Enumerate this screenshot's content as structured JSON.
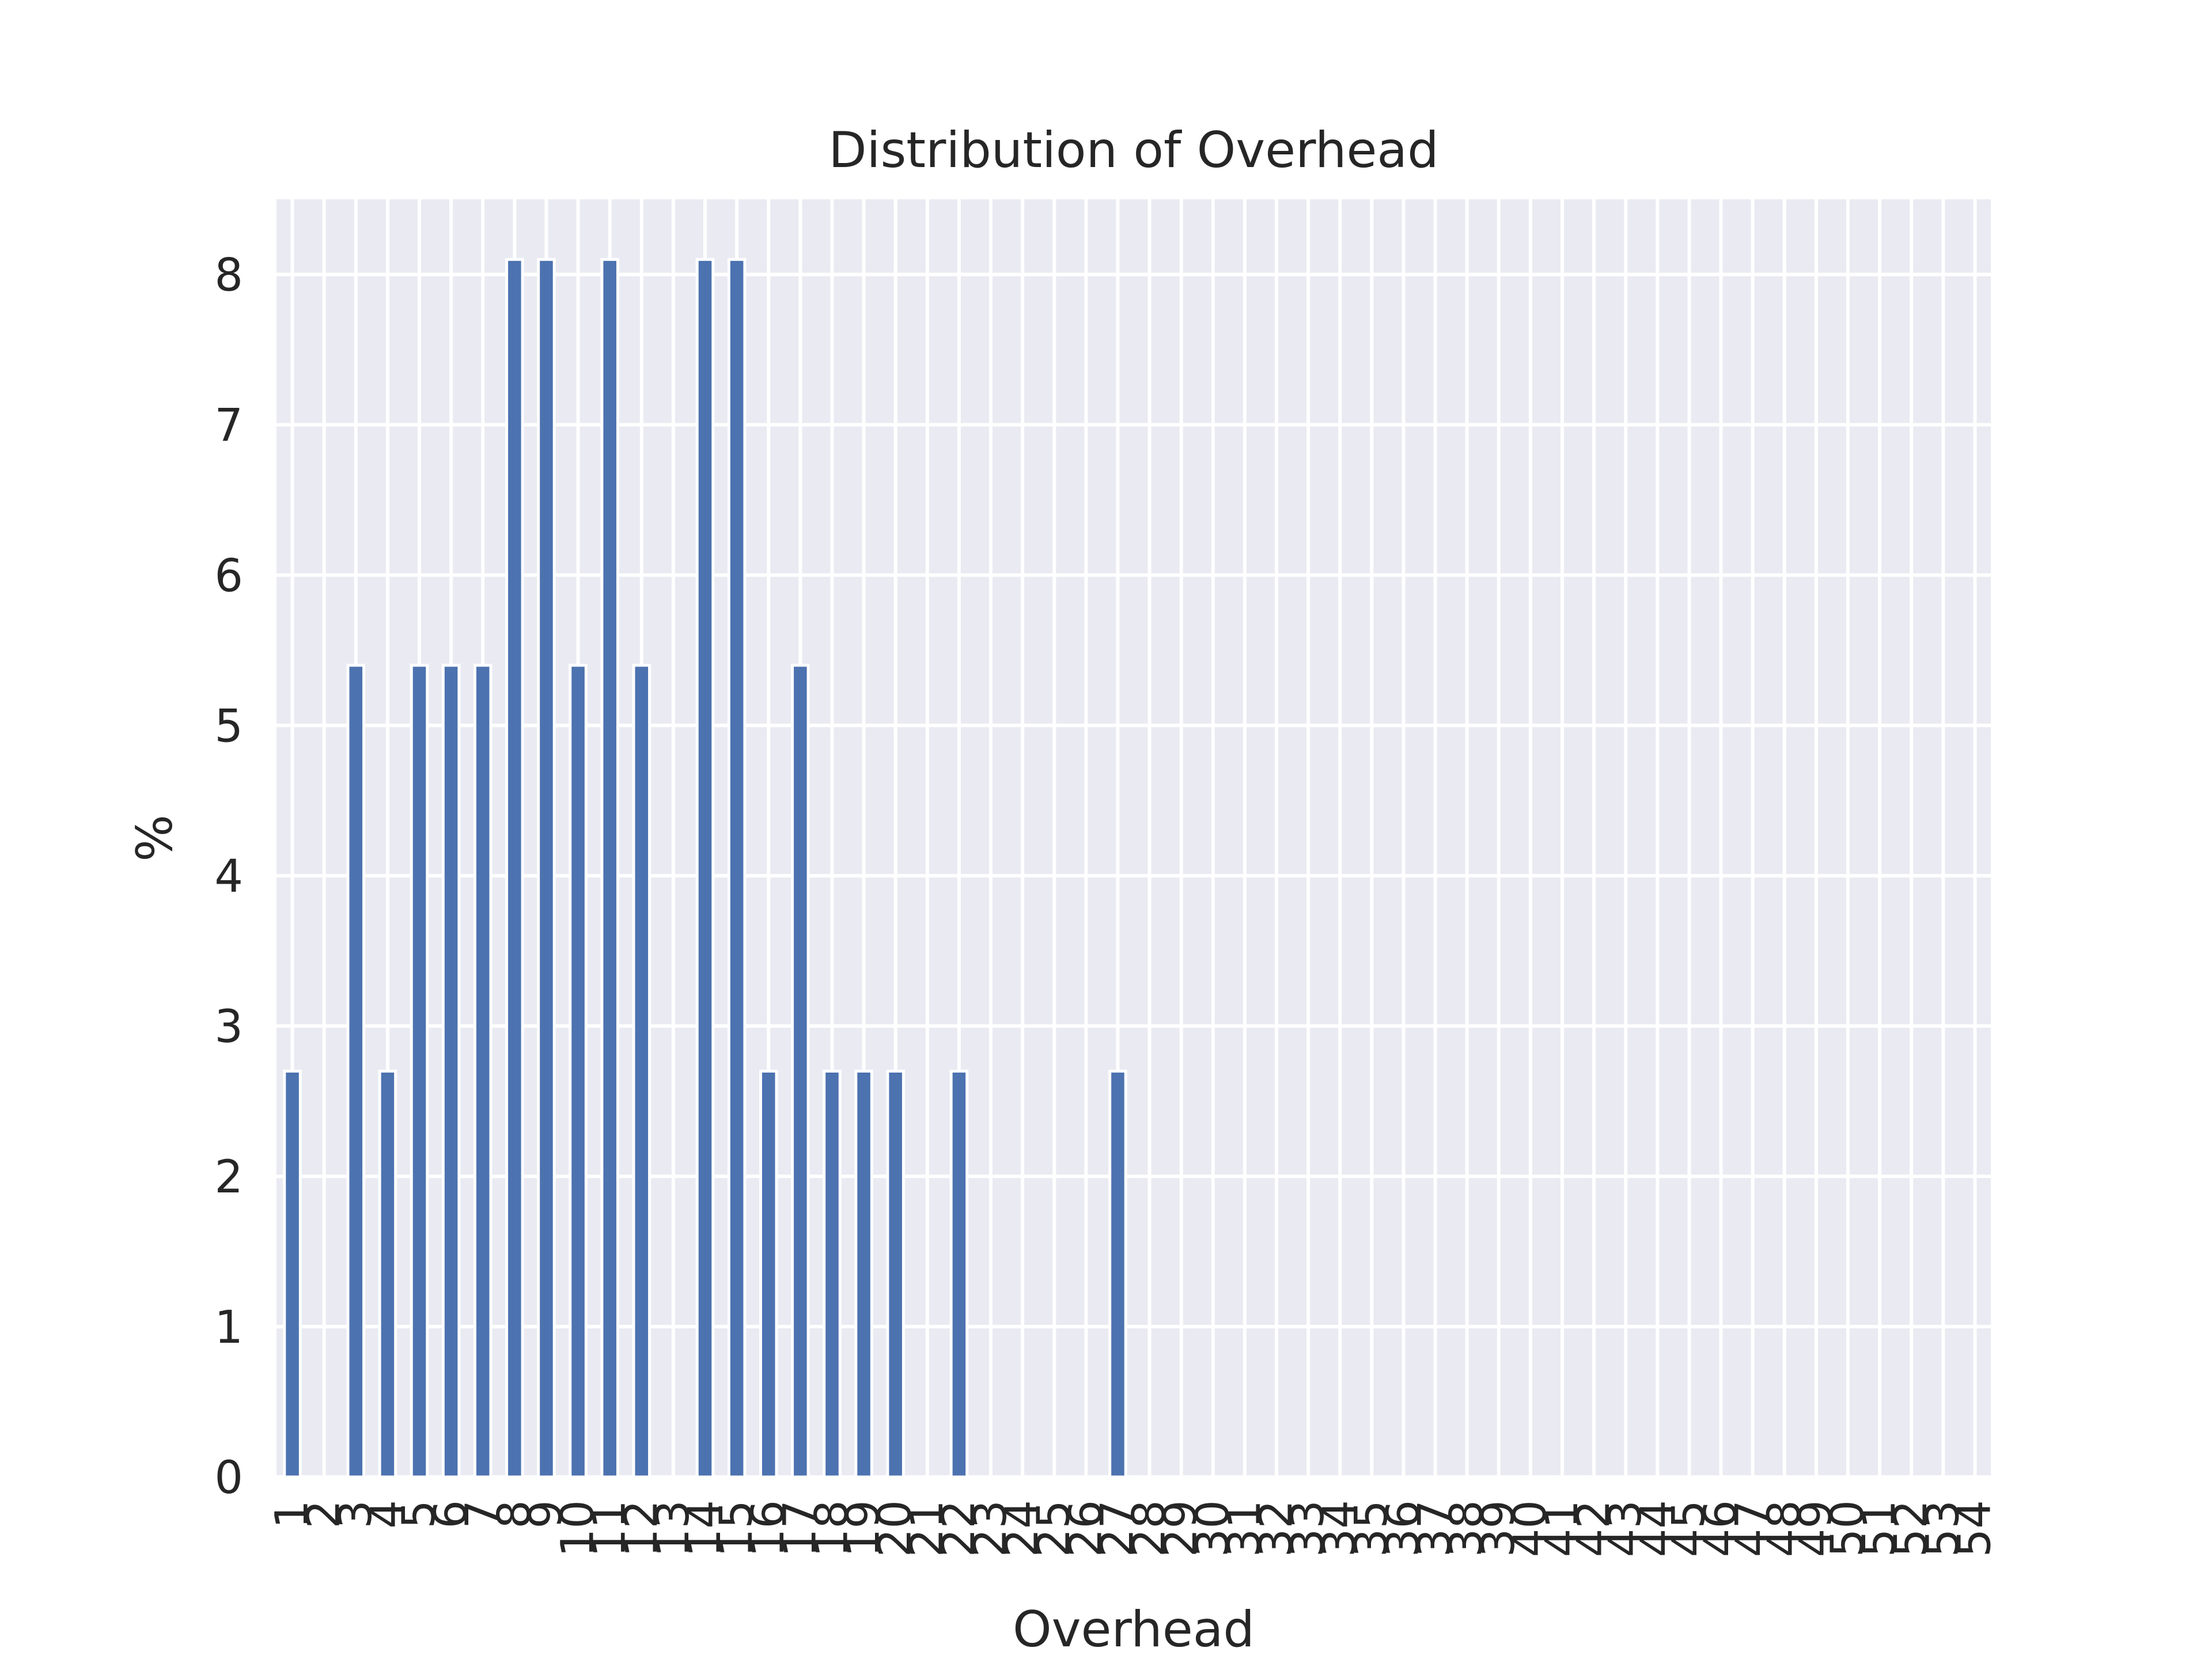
{
  "chart_data": {
    "type": "bar",
    "title": "Distribution of Overhead",
    "xlabel": "Overhead",
    "ylabel": "%",
    "categories": [
      "1",
      "2",
      "3",
      "4",
      "5",
      "6",
      "7",
      "8",
      "9",
      "10",
      "11",
      "12",
      "13",
      "14",
      "15",
      "16",
      "17",
      "18",
      "19",
      "20",
      "21",
      "22",
      "23",
      "24",
      "25",
      "26",
      "27",
      "28",
      "29",
      "30",
      "31",
      "32",
      "33",
      "34",
      "35",
      "36",
      "37",
      "38",
      "39",
      "40",
      "41",
      "42",
      "43",
      "44",
      "45",
      "46",
      "47",
      "48",
      "49",
      "50",
      "51",
      "52",
      "53",
      "54"
    ],
    "values": [
      2.7,
      0,
      5.4,
      2.7,
      5.4,
      5.4,
      5.4,
      8.1,
      8.1,
      5.4,
      8.1,
      5.4,
      0,
      8.1,
      8.1,
      2.7,
      5.4,
      2.7,
      2.7,
      2.7,
      0,
      2.7,
      0,
      0,
      0,
      0,
      2.7,
      0,
      0,
      0,
      0,
      0,
      0,
      0,
      0,
      0,
      0,
      0,
      0,
      0,
      0,
      0,
      0,
      0,
      0,
      0,
      0,
      0,
      0,
      0,
      0,
      0,
      0,
      0
    ],
    "ylim": [
      0,
      8.5
    ],
    "yticks": [
      0,
      1,
      2,
      3,
      4,
      5,
      6,
      7,
      8
    ],
    "grid": true,
    "colors": {
      "bar": "#4c72b0",
      "background": "#eaeaf2",
      "grid": "#ffffff"
    }
  }
}
